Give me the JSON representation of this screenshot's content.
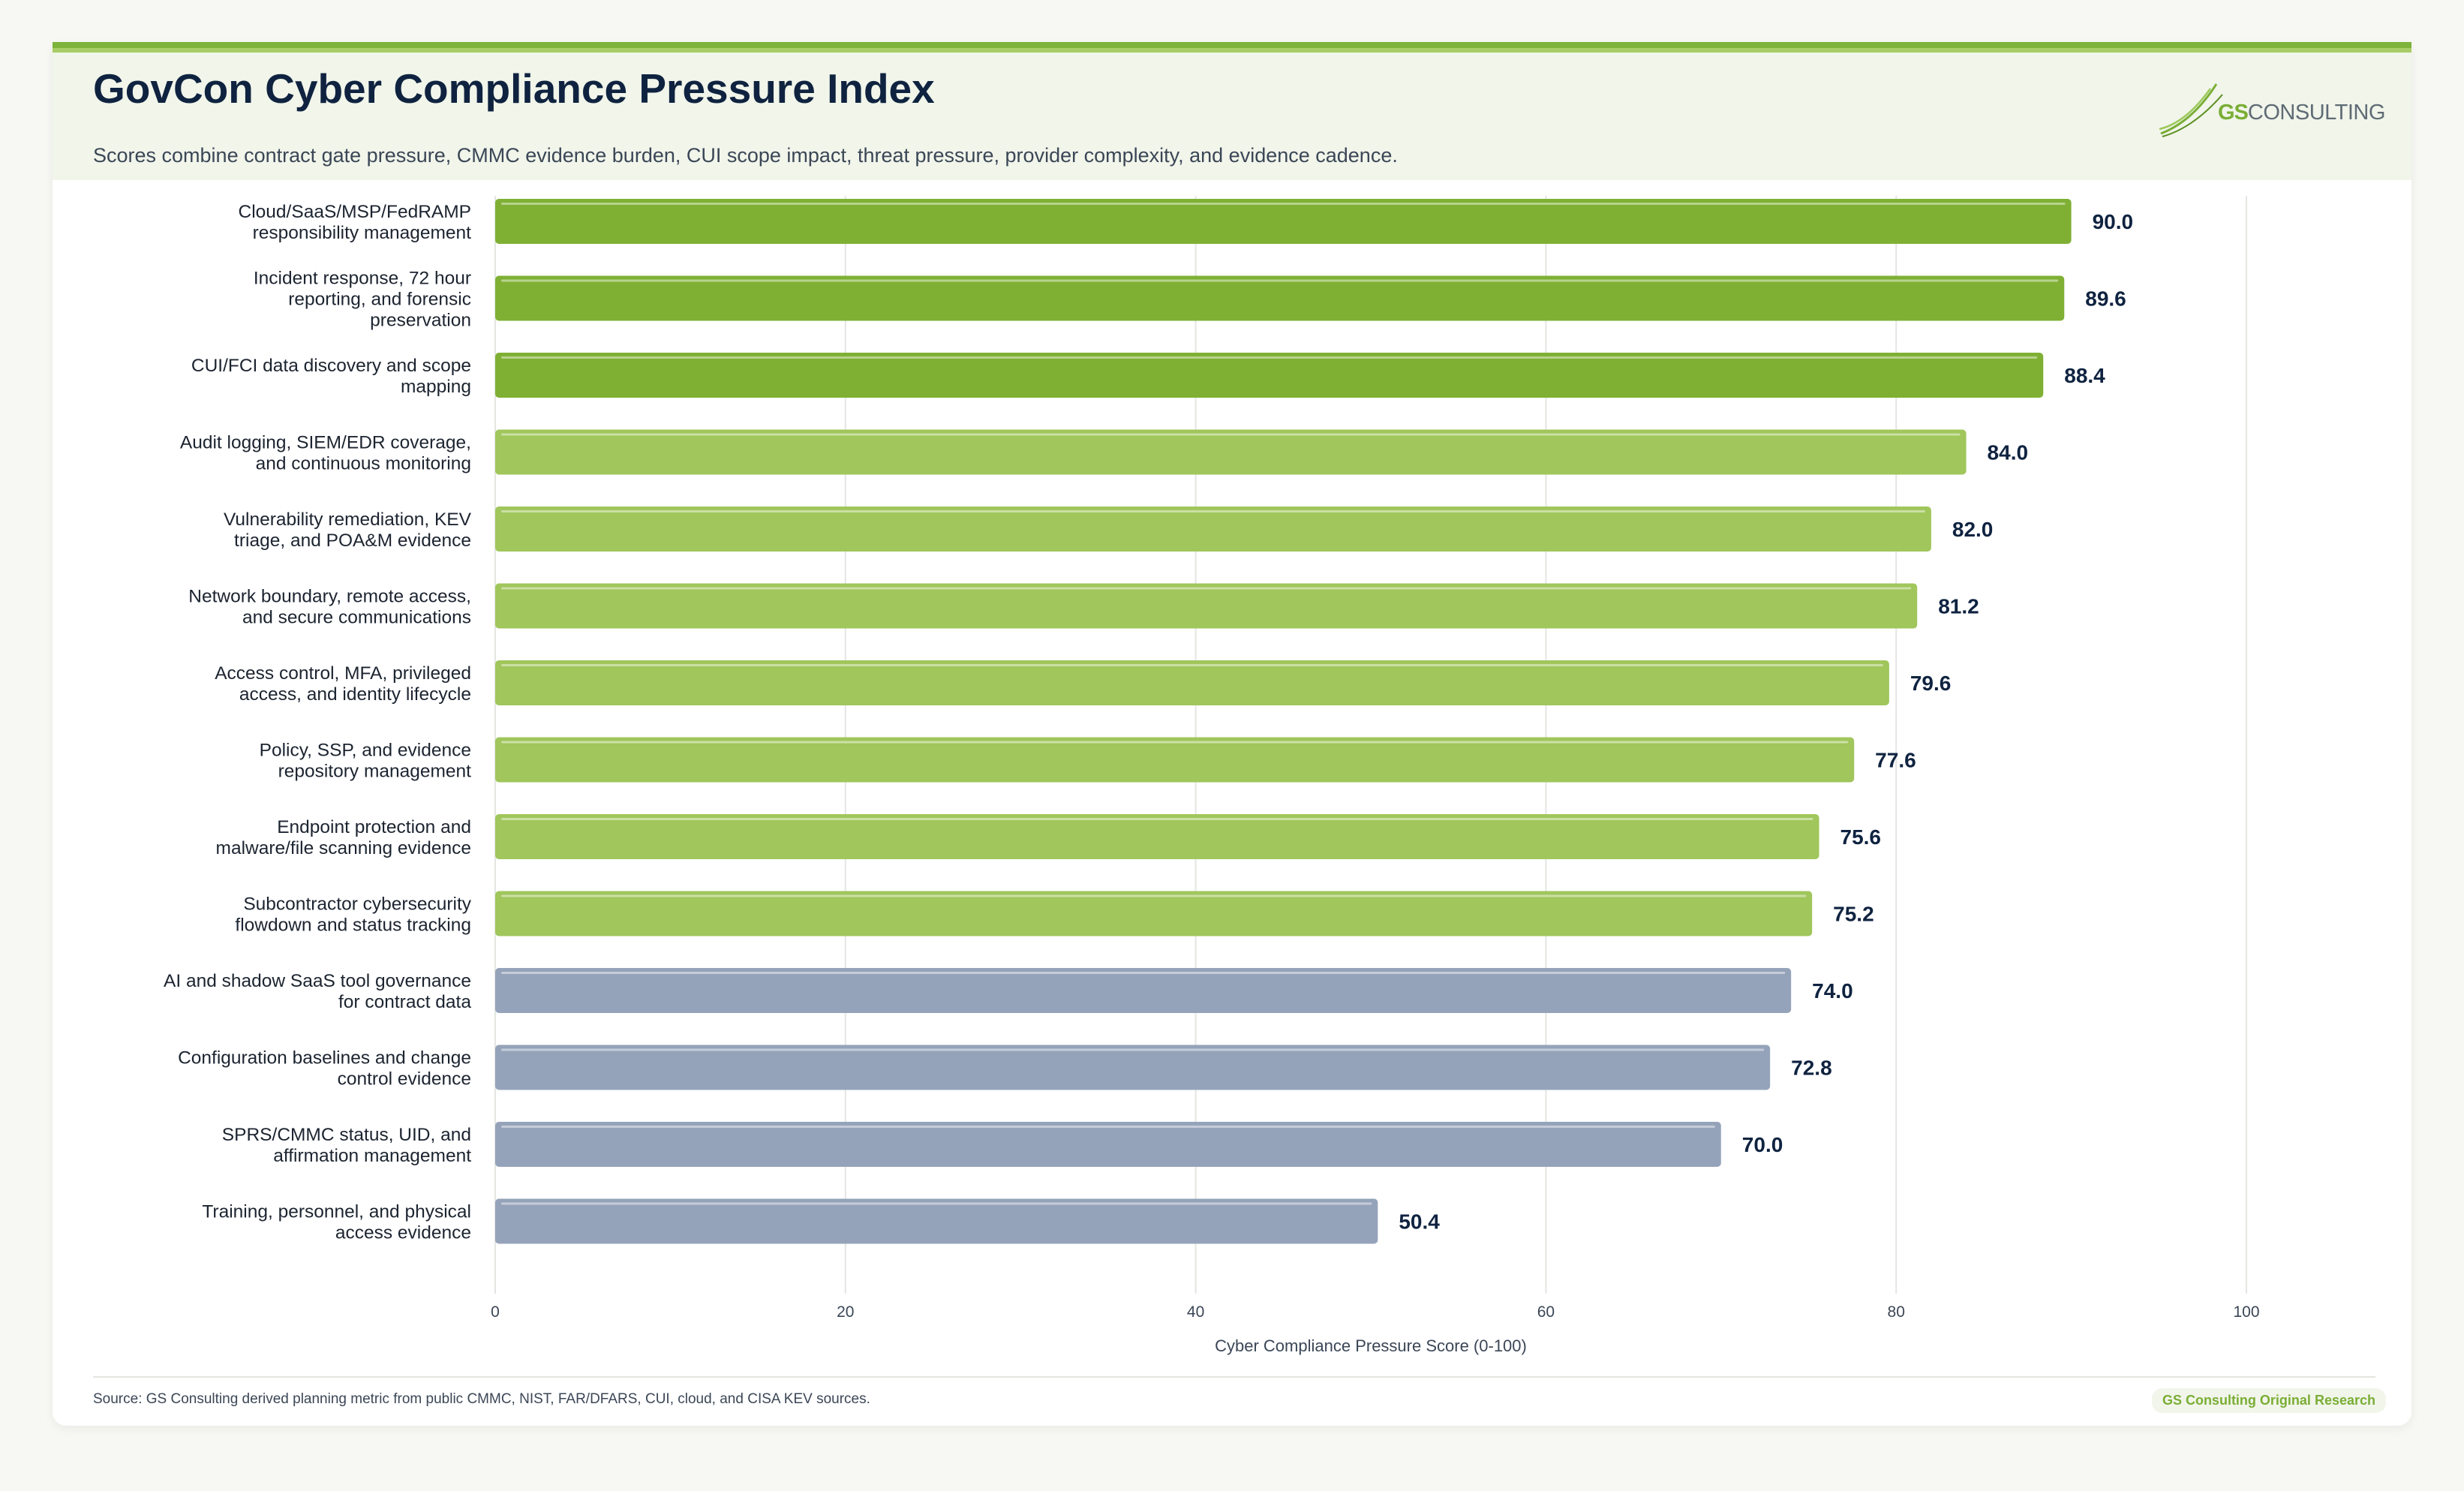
{
  "header": {
    "title": "GovCon Cyber Compliance Pressure Index",
    "subtitle": "Scores combine contract gate pressure, CMMC evidence burden, CUI scope impact, threat pressure, provider complexity, and evidence cadence.",
    "logo_gs": "GS",
    "logo_rest": "CONSULTING"
  },
  "footer": {
    "source": "Source: GS Consulting derived planning metric from public CMMC, NIST, FAR/DFARS, CUI, cloud, and CISA KEV sources.",
    "badge": "GS Consulting Original Research"
  },
  "colors": {
    "high": "#7fb034",
    "mid": "#a0c65c",
    "low": "#95a3ba",
    "title": "#0f2340",
    "grid": "#e4e6e2"
  },
  "chart_data": {
    "type": "bar",
    "orientation": "horizontal",
    "categories": [
      "Cloud/SaaS/MSP/FedRAMP responsibility management",
      "Incident response, 72 hour reporting, and forensic preservation",
      "CUI/FCI data discovery and scope mapping",
      "Audit logging, SIEM/EDR coverage, and continuous monitoring",
      "Vulnerability remediation, KEV triage, and POA&M evidence",
      "Network boundary, remote access, and secure communications",
      "Access control, MFA, privileged access, and identity lifecycle",
      "Policy, SSP, and evidence repository management",
      "Endpoint protection and malware/file scanning evidence",
      "Subcontractor cybersecurity flowdown and status tracking",
      "AI and shadow SaaS tool governance for contract data",
      "Configuration baselines and change control evidence",
      "SPRS/CMMC status, UID, and affirmation management",
      "Training, personnel, and physical access evidence"
    ],
    "category_lines": [
      [
        "Cloud/SaaS/MSP/FedRAMP",
        "responsibility management"
      ],
      [
        "Incident response, 72 hour",
        "reporting, and forensic",
        "preservation"
      ],
      [
        "CUI/FCI data discovery and scope",
        "mapping"
      ],
      [
        "Audit logging, SIEM/EDR coverage,",
        "and continuous monitoring"
      ],
      [
        "Vulnerability remediation, KEV",
        "triage, and POA&M evidence"
      ],
      [
        "Network boundary, remote access,",
        "and secure communications"
      ],
      [
        "Access control, MFA, privileged",
        "access, and identity lifecycle"
      ],
      [
        "Policy, SSP, and evidence",
        "repository management"
      ],
      [
        "Endpoint protection and",
        "malware/file scanning evidence"
      ],
      [
        "Subcontractor cybersecurity",
        "flowdown and status tracking"
      ],
      [
        "AI and shadow SaaS tool governance",
        "for contract data"
      ],
      [
        "Configuration baselines and change",
        "control evidence"
      ],
      [
        "SPRS/CMMC status, UID, and",
        "affirmation management"
      ],
      [
        "Training, personnel, and physical",
        "access evidence"
      ]
    ],
    "values": [
      90.0,
      89.6,
      88.4,
      84.0,
      82.0,
      81.2,
      79.6,
      77.6,
      75.6,
      75.2,
      74.0,
      72.8,
      70.0,
      50.4
    ],
    "value_labels": [
      "90.0",
      "89.6",
      "88.4",
      "84.0",
      "82.0",
      "81.2",
      "79.6",
      "77.6",
      "75.6",
      "75.2",
      "74.0",
      "72.8",
      "70.0",
      "50.4"
    ],
    "tiers": [
      "high",
      "high",
      "high",
      "mid",
      "mid",
      "mid",
      "mid",
      "mid",
      "mid",
      "mid",
      "low",
      "low",
      "low",
      "low"
    ],
    "xlabel": "Cyber Compliance Pressure Score (0-100)",
    "ylabel": "",
    "xlim": [
      0,
      100
    ],
    "xticks": [
      0,
      20,
      40,
      60,
      80,
      100
    ],
    "grid": "vertical"
  }
}
